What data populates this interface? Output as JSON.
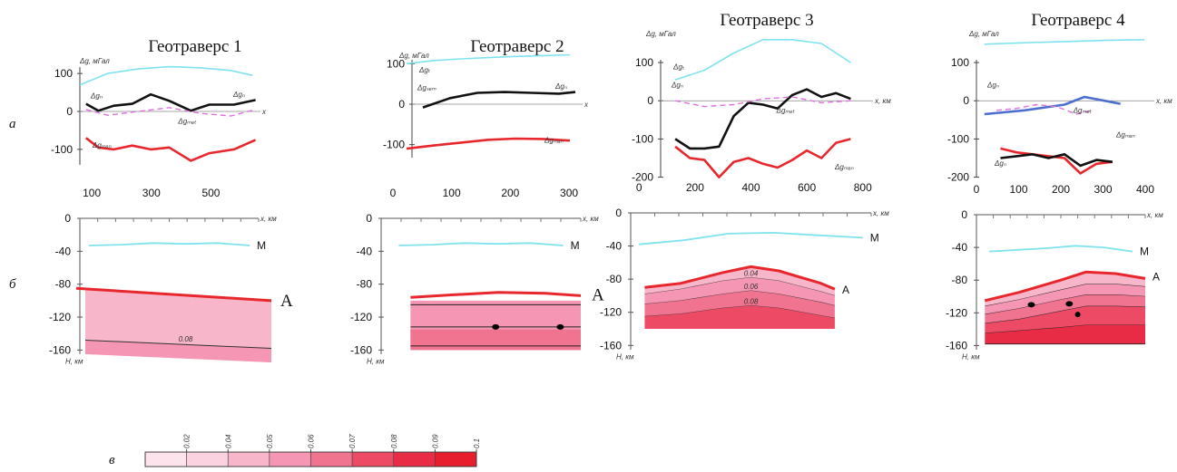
{
  "row_labels": {
    "a": "а",
    "b": "б",
    "c": "в"
  },
  "colors": {
    "dg_observed": "#111111",
    "dg_total": "#7fe3ee",
    "dg_mantle": "#e8272d",
    "dg_residual": "#e070e0",
    "moho": "#7fe3ee",
    "lab": "#e8272d",
    "blue_line": "#4d6fd0"
  },
  "panels": [
    {
      "title": "Геотраверс 1",
      "gravity": {
        "y_axis_label": "Δg, мГал",
        "yticks": [
          "100",
          "0",
          "-100"
        ],
        "curve_labels": {
          "dg_total": "",
          "dg_obs": "Δgₙ",
          "dg_obs_right": "Δgₙ",
          "dg_residual": "Δgₘₑₜ",
          "dg_mantle": "Δgₘₐₙ",
          "x_end": "x"
        }
      },
      "section": {
        "xticks": [
          "100",
          "300",
          "500"
        ],
        "x_axis_label": "x, км",
        "yticks": [
          "0",
          "-40",
          "-80",
          "-120",
          "-160"
        ],
        "y_axis_label": "H, км",
        "moho_label": "M",
        "lab_label": "A",
        "contour_label": "0.08"
      }
    },
    {
      "title": "Геотраверс 2",
      "gravity": {
        "y_axis_label": "Δg, мГал",
        "yticks": [
          "100",
          "0",
          "-100"
        ],
        "curve_labels": {
          "dg_total": "Δgₜ",
          "dg_obs": "Δgₛₑₘ",
          "dg_obs_right": "Δgₙ",
          "dg_mantle": "Δgₘₐₙ",
          "x_end": "x"
        }
      },
      "section": {
        "xticks": [
          "0",
          "100",
          "200",
          "300"
        ],
        "x_axis_label": "x, км",
        "yticks": [
          "0",
          "-40",
          "-80",
          "-120",
          "-160"
        ],
        "y_axis_label": "H, км",
        "moho_label": "M",
        "lab_label": "A"
      }
    },
    {
      "title": "Геотраверс 3",
      "gravity": {
        "y_axis_label": "Δg, мГал",
        "yticks": [
          "100",
          "0",
          "-100",
          "-200"
        ],
        "curve_labels": {
          "dg_total": "Δgₜ",
          "dg_obs": "Δgₙ",
          "dg_residual": "Δgₘₑₜ",
          "dg_mantle": "Δgₘₐₙ",
          "x_end": "x, км"
        }
      },
      "section": {
        "xticks": [
          "0",
          "200",
          "400",
          "600",
          "800"
        ],
        "x_axis_label": "x, км",
        "yticks": [
          "0",
          "-40",
          "-80",
          "-120",
          "-160"
        ],
        "y_axis_label": "H, км",
        "moho_label": "M",
        "lab_label": "A",
        "contour_labels": [
          "0.04",
          "0.06",
          "0.08"
        ]
      }
    },
    {
      "title": "Геотраверс 4",
      "gravity": {
        "y_axis_label": "Δg, мГал",
        "yticks": [
          "100",
          "0",
          "-100",
          "-200"
        ],
        "curve_labels": {
          "dg_total": "",
          "dg_obs": "Δgₙ",
          "dg_residual": "Δgₘₑₜ",
          "dg_mantle": "Δgₘₐₙ",
          "dg_obs2": "Δgₙ",
          "x_end": "x, км"
        }
      },
      "section": {
        "xticks": [
          "0",
          "100",
          "200",
          "300",
          "400"
        ],
        "x_axis_label": "x, км",
        "yticks": [
          "0",
          "-40",
          "-80",
          "-120",
          "-160"
        ],
        "y_axis_label": "H, км",
        "moho_label": "M",
        "lab_label": "A"
      }
    }
  ],
  "colorbar": {
    "ticks": [
      "0.02",
      "0.04",
      "0.05",
      "0.06",
      "0.07",
      "0.08",
      "0.09",
      "0.1"
    ],
    "colors": [
      "#fde3ec",
      "#fbd2e0",
      "#f8b6cb",
      "#f597b4",
      "#f0738f",
      "#ec4a65",
      "#e92c45",
      "#e61e2e"
    ]
  },
  "chart_data": [
    {
      "type": "line",
      "panel": "Геотраверс 1 (a)",
      "ylim": [
        -160,
        160
      ],
      "series": [
        {
          "name": "Δg_total",
          "x": [
            60,
            150,
            250,
            350,
            450,
            550,
            620
          ],
          "values": [
            70,
            100,
            112,
            118,
            115,
            108,
            95
          ]
        },
        {
          "name": "Δgₙ",
          "x": [
            80,
            120,
            170,
            230,
            290,
            350,
            420,
            480,
            560,
            630
          ],
          "values": [
            20,
            2,
            15,
            20,
            45,
            28,
            2,
            18,
            18,
            30
          ]
        },
        {
          "name": "Δgₘₑₜ",
          "x": [
            80,
            150,
            250,
            350,
            450,
            550,
            630
          ],
          "values": [
            5,
            -10,
            0,
            10,
            -5,
            -12,
            5
          ]
        },
        {
          "name": "Δgₘₐₙ",
          "x": [
            80,
            120,
            170,
            230,
            290,
            350,
            420,
            480,
            560,
            630
          ],
          "values": [
            -70,
            -95,
            -100,
            -90,
            -100,
            -95,
            -130,
            -110,
            -100,
            -75
          ]
        }
      ]
    },
    {
      "type": "line",
      "panel": "Геотраверс 2 (a)",
      "ylim": [
        -150,
        150
      ],
      "series": [
        {
          "name": "Δg_total",
          "x": [
            0,
            50,
            100,
            150,
            200,
            250,
            300
          ],
          "values": [
            100,
            108,
            112,
            115,
            118,
            120,
            122
          ]
        },
        {
          "name": "Δgₙ",
          "x": [
            30,
            80,
            130,
            180,
            230,
            280,
            310
          ],
          "values": [
            -8,
            15,
            28,
            30,
            28,
            26,
            30
          ]
        },
        {
          "name": "Δgₘₐₙ",
          "x": [
            0,
            50,
            100,
            150,
            200,
            250,
            300
          ],
          "values": [
            -110,
            -102,
            -95,
            -88,
            -85,
            -86,
            -90
          ]
        }
      ]
    },
    {
      "type": "line",
      "panel": "Геотраверс 3 (a)",
      "ylim": [
        -200,
        150
      ],
      "series": [
        {
          "name": "Δgₜ",
          "x": [
            50,
            150,
            250,
            350,
            450,
            550,
            650
          ],
          "values": [
            55,
            80,
            125,
            160,
            160,
            150,
            100
          ]
        },
        {
          "name": "Δgₙ",
          "x": [
            50,
            100,
            150,
            200,
            250,
            300,
            350,
            400,
            450,
            500,
            550,
            600,
            650
          ],
          "values": [
            -100,
            -125,
            -125,
            -120,
            -40,
            -5,
            -10,
            -20,
            15,
            30,
            10,
            20,
            5
          ]
        },
        {
          "name": "Δgₘₑₜ",
          "x": [
            50,
            150,
            250,
            350,
            450,
            550,
            650
          ],
          "values": [
            0,
            -15,
            -10,
            5,
            10,
            -5,
            0
          ]
        },
        {
          "name": "Δgₘₐₙ",
          "x": [
            50,
            100,
            150,
            200,
            250,
            300,
            350,
            400,
            450,
            500,
            550,
            600,
            650
          ],
          "values": [
            -120,
            -150,
            -155,
            -200,
            -160,
            -150,
            -165,
            -175,
            -155,
            -130,
            -150,
            -110,
            -100
          ]
        }
      ]
    },
    {
      "type": "line",
      "panel": "Геотраверс 4 (a)",
      "ylim": [
        -200,
        150
      ],
      "series": [
        {
          "name": "Δg_total",
          "x": [
            0,
            100,
            200,
            300,
            400
          ],
          "values": [
            148,
            152,
            155,
            158,
            160
          ]
        },
        {
          "name": "Δgₙ",
          "x": [
            0,
            100,
            200,
            250,
            300,
            340
          ],
          "values": [
            -35,
            -25,
            -10,
            10,
            0,
            -8
          ]
        },
        {
          "name": "Δgₘₑₜ",
          "x": [
            30,
            80,
            130,
            180,
            230,
            270
          ],
          "values": [
            -25,
            -20,
            -10,
            -15,
            -35,
            -25
          ]
        },
        {
          "name": "Δgₘₐₙ",
          "x": [
            40,
            80,
            120,
            160,
            200,
            240,
            280,
            320
          ],
          "values": [
            -125,
            -135,
            -140,
            -145,
            -150,
            -190,
            -165,
            -160
          ]
        },
        {
          "name": "Δgₙ (2)",
          "x": [
            40,
            80,
            120,
            160,
            200,
            240,
            280,
            320
          ],
          "values": [
            -150,
            -145,
            -140,
            -150,
            -140,
            -170,
            -155,
            -160
          ]
        }
      ]
    }
  ]
}
